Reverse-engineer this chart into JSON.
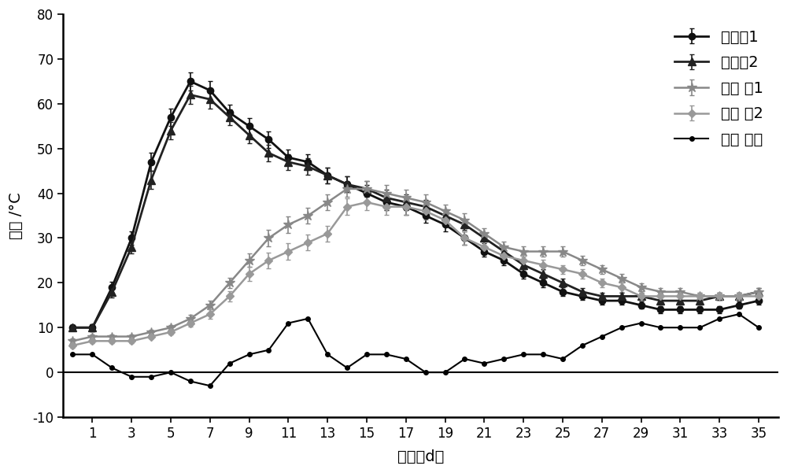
{
  "title": "",
  "xlabel": "时间（d）",
  "ylabel": "温度 /°C",
  "xlim": [
    -0.5,
    36
  ],
  "ylim": [
    -10,
    80
  ],
  "yticks": [
    -10,
    0,
    10,
    20,
    30,
    40,
    50,
    60,
    70,
    80
  ],
  "xticks": [
    1,
    3,
    5,
    7,
    9,
    11,
    13,
    15,
    17,
    19,
    21,
    23,
    25,
    27,
    29,
    31,
    33,
    35
  ],
  "series": {
    "实验组1": {
      "x": [
        0,
        1,
        2,
        3,
        4,
        5,
        6,
        7,
        8,
        9,
        10,
        11,
        12,
        13,
        14,
        15,
        16,
        17,
        18,
        19,
        20,
        21,
        22,
        23,
        24,
        25,
        26,
        27,
        28,
        29,
        30,
        31,
        32,
        33,
        34,
        35
      ],
      "y": [
        10,
        10,
        19,
        30,
        47,
        57,
        65,
        63,
        58,
        55,
        52,
        48,
        47,
        44,
        42,
        40,
        38,
        37,
        35,
        33,
        30,
        27,
        25,
        22,
        20,
        18,
        17,
        16,
        16,
        15,
        14,
        14,
        14,
        14,
        15,
        16
      ],
      "yerr": [
        0.5,
        0.8,
        1.2,
        1.5,
        2.0,
        2.0,
        2.0,
        2.0,
        1.8,
        1.8,
        1.8,
        1.8,
        1.8,
        1.8,
        1.8,
        1.8,
        1.8,
        1.8,
        1.5,
        1.5,
        1.5,
        1.2,
        1.0,
        1.0,
        1.0,
        1.0,
        0.8,
        0.8,
        0.8,
        0.8,
        0.8,
        0.8,
        0.8,
        0.8,
        0.8,
        0.8
      ],
      "color": "#111111",
      "marker": "o",
      "markersize": 6,
      "linewidth": 2.0,
      "linestyle": "-",
      "legend": "实验组1"
    },
    "实验组2": {
      "x": [
        0,
        1,
        2,
        3,
        4,
        5,
        6,
        7,
        8,
        9,
        10,
        11,
        12,
        13,
        14,
        15,
        16,
        17,
        18,
        19,
        20,
        21,
        22,
        23,
        24,
        25,
        26,
        27,
        28,
        29,
        30,
        31,
        32,
        33,
        34,
        35
      ],
      "y": [
        10,
        10,
        18,
        28,
        43,
        54,
        62,
        61,
        57,
        53,
        49,
        47,
        46,
        44,
        42,
        41,
        39,
        38,
        37,
        35,
        33,
        30,
        27,
        24,
        22,
        20,
        18,
        17,
        17,
        17,
        16,
        16,
        16,
        17,
        17,
        18
      ],
      "yerr": [
        0.5,
        0.8,
        1.2,
        1.5,
        2.0,
        2.0,
        2.0,
        2.0,
        1.8,
        1.8,
        1.8,
        1.8,
        1.8,
        1.8,
        1.8,
        1.8,
        1.8,
        1.8,
        1.5,
        1.5,
        1.2,
        1.2,
        1.0,
        1.0,
        1.0,
        1.0,
        0.8,
        0.8,
        0.8,
        0.8,
        0.8,
        0.8,
        0.8,
        0.8,
        0.8,
        0.8
      ],
      "color": "#222222",
      "marker": "^",
      "markersize": 7,
      "linewidth": 2.0,
      "linestyle": "-",
      "legend": "实验组2"
    },
    "对照组1": {
      "x": [
        0,
        1,
        2,
        3,
        4,
        5,
        6,
        7,
        8,
        9,
        10,
        11,
        12,
        13,
        14,
        15,
        16,
        17,
        18,
        19,
        20,
        21,
        22,
        23,
        24,
        25,
        26,
        27,
        28,
        29,
        30,
        31,
        32,
        33,
        34,
        35
      ],
      "y": [
        7,
        8,
        8,
        8,
        9,
        10,
        12,
        15,
        20,
        25,
        30,
        33,
        35,
        38,
        41,
        41,
        40,
        39,
        38,
        36,
        34,
        31,
        28,
        27,
        27,
        27,
        25,
        23,
        21,
        19,
        18,
        18,
        17,
        17,
        17,
        18
      ],
      "yerr": [
        0.5,
        0.5,
        0.5,
        0.5,
        0.5,
        0.5,
        0.8,
        1.0,
        1.2,
        1.5,
        1.8,
        1.8,
        1.8,
        1.8,
        1.8,
        1.8,
        1.8,
        1.8,
        1.8,
        1.5,
        1.5,
        1.2,
        1.2,
        1.2,
        1.2,
        1.2,
        1.0,
        1.0,
        1.0,
        0.8,
        0.8,
        0.8,
        0.8,
        0.8,
        0.8,
        0.8
      ],
      "color": "#888888",
      "marker": "*",
      "markersize": 9,
      "linewidth": 1.8,
      "linestyle": "-",
      "legend": "对照 组1"
    },
    "对照组2": {
      "x": [
        0,
        1,
        2,
        3,
        4,
        5,
        6,
        7,
        8,
        9,
        10,
        11,
        12,
        13,
        14,
        15,
        16,
        17,
        18,
        19,
        20,
        21,
        22,
        23,
        24,
        25,
        26,
        27,
        28,
        29,
        30,
        31,
        32,
        33,
        34,
        35
      ],
      "y": [
        6,
        7,
        7,
        7,
        8,
        9,
        11,
        13,
        17,
        22,
        25,
        27,
        29,
        31,
        37,
        38,
        37,
        37,
        36,
        34,
        30,
        28,
        26,
        25,
        24,
        23,
        22,
        20,
        19,
        17,
        17,
        17,
        17,
        17,
        17,
        17
      ],
      "yerr": [
        0.5,
        0.5,
        0.5,
        0.5,
        0.5,
        0.5,
        0.8,
        1.0,
        1.2,
        1.5,
        1.8,
        1.8,
        1.8,
        1.8,
        1.8,
        1.8,
        1.8,
        1.8,
        1.8,
        1.5,
        1.5,
        1.2,
        1.2,
        1.2,
        1.2,
        1.0,
        1.0,
        1.0,
        1.0,
        0.8,
        0.8,
        0.8,
        0.8,
        0.8,
        0.8,
        0.8
      ],
      "color": "#999999",
      "marker": "D",
      "markersize": 5,
      "linewidth": 1.8,
      "linestyle": "-",
      "legend": "对照 组2"
    },
    "环境温度": {
      "x": [
        0,
        1,
        2,
        3,
        4,
        5,
        6,
        7,
        8,
        9,
        10,
        11,
        12,
        13,
        14,
        15,
        16,
        17,
        18,
        19,
        20,
        21,
        22,
        23,
        24,
        25,
        26,
        27,
        28,
        29,
        30,
        31,
        32,
        33,
        34,
        35
      ],
      "y": [
        4,
        4,
        1,
        -1,
        -1,
        0,
        -2,
        -3,
        2,
        4,
        5,
        11,
        12,
        4,
        1,
        4,
        4,
        3,
        0,
        0,
        3,
        2,
        3,
        4,
        4,
        3,
        6,
        8,
        10,
        11,
        10,
        10,
        10,
        12,
        13,
        10
      ],
      "yerr": null,
      "color": "#000000",
      "marker": "o",
      "markersize": 4,
      "linewidth": 1.5,
      "linestyle": "-",
      "legend": "环境 温度"
    }
  },
  "series_order": [
    "实验组1",
    "实验组2",
    "对照组1",
    "对照组2",
    "环境温度"
  ],
  "background_color": "#ffffff",
  "figsize": [
    10.0,
    6.01
  ],
  "dpi": 100,
  "font_size_tick": 12,
  "font_size_label": 14,
  "font_size_legend": 14
}
